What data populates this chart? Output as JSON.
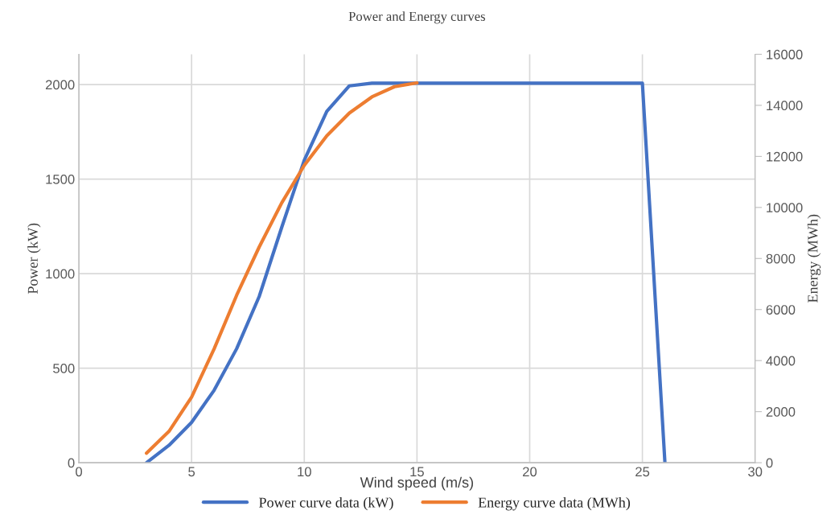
{
  "chart_data": {
    "type": "line",
    "title": "Power and Energy curves",
    "xlabel": "Wind speed (m/s)",
    "ylabel": "Power (kW)",
    "y2label": "Energy (MWh)",
    "xlim": [
      0,
      30
    ],
    "xticks": [
      0,
      5,
      10,
      15,
      20,
      25,
      30
    ],
    "ylim": [
      0,
      2160
    ],
    "yticks": [
      0,
      500,
      1000,
      1500,
      2000
    ],
    "y2lim": [
      0,
      16000
    ],
    "y2ticks": [
      0,
      2000,
      4000,
      6000,
      8000,
      10000,
      12000,
      14000,
      16000
    ],
    "grid": true,
    "legend": "bottom",
    "tick_labels": true,
    "series": [
      {
        "name": "Power curve data (kW)",
        "color": "#4472c4",
        "x": [
          3,
          4,
          5,
          6,
          7,
          8,
          9,
          10,
          11,
          12,
          13,
          14,
          15,
          16,
          17,
          18,
          19,
          20,
          21,
          22,
          23,
          24,
          25,
          26
        ],
        "values": [
          0,
          92,
          213,
          383,
          603,
          879,
          1245,
          1600,
          1858,
          1993,
          2007,
          2007,
          2007,
          2007,
          2007,
          2007,
          2007,
          2007,
          2007,
          2007,
          2007,
          2007,
          2007,
          0
        ]
      },
      {
        "name": "Energy curve data (MWh)",
        "color": "#ed7d31",
        "axis": "y2",
        "x": [
          3,
          4,
          5,
          6,
          7,
          8,
          9,
          10,
          11,
          12,
          13,
          14,
          15
        ],
        "values": [
          370,
          1230,
          2570,
          4460,
          6560,
          8450,
          10180,
          11650,
          12810,
          13700,
          14330,
          14730,
          14880
        ]
      }
    ]
  }
}
